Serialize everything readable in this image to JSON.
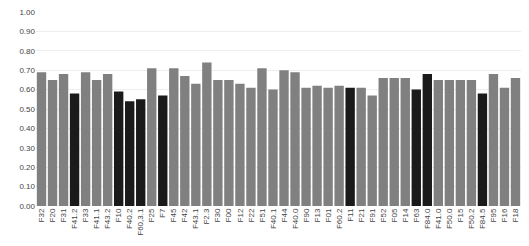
{
  "chart_data": {
    "type": "bar",
    "categories": [
      "F32",
      "F20",
      "F31",
      "F41.2",
      "F33",
      "F41.1",
      "F43.2",
      "F10",
      "F40.2",
      "F60,3.1",
      "F25",
      "F7",
      "F45",
      "F42",
      "F43.1",
      "F2.3",
      "F30",
      "F00",
      "F12",
      "F22",
      "F51",
      "F40.1",
      "F44",
      "F40.0",
      "F90",
      "F13",
      "F01",
      "F60.2",
      "F11",
      "F21",
      "F91",
      "F52",
      "F05",
      "F14",
      "F63",
      "F84.0",
      "F41.0",
      "F50.0",
      "F15",
      "F50.2",
      "F84.5",
      "F95",
      "F16",
      "F18"
    ],
    "values": [
      0.69,
      0.65,
      0.68,
      0.58,
      0.69,
      0.65,
      0.68,
      0.59,
      0.54,
      0.55,
      0.71,
      0.57,
      0.71,
      0.67,
      0.63,
      0.74,
      0.65,
      0.65,
      0.63,
      0.61,
      0.71,
      0.6,
      0.7,
      0.69,
      0.61,
      0.62,
      0.61,
      0.62,
      0.61,
      0.61,
      0.57,
      0.66,
      0.66,
      0.66,
      0.6,
      0.68,
      0.65,
      0.65,
      0.65,
      0.65,
      0.58,
      0.68,
      0.61,
      0.66
    ],
    "colors": [
      "#808080",
      "#808080",
      "#808080",
      "#1a1a1a",
      "#808080",
      "#808080",
      "#808080",
      "#1a1a1a",
      "#1a1a1a",
      "#1a1a1a",
      "#808080",
      "#1a1a1a",
      "#808080",
      "#808080",
      "#808080",
      "#808080",
      "#808080",
      "#808080",
      "#808080",
      "#808080",
      "#808080",
      "#808080",
      "#808080",
      "#808080",
      "#808080",
      "#808080",
      "#808080",
      "#808080",
      "#1a1a1a",
      "#808080",
      "#808080",
      "#808080",
      "#808080",
      "#808080",
      "#1a1a1a",
      "#1a1a1a",
      "#808080",
      "#808080",
      "#808080",
      "#808080",
      "#1a1a1a",
      "#808080",
      "#808080",
      "#808080"
    ],
    "ylim": [
      0.0,
      1.0
    ],
    "yticks": [
      {
        "value": 0.0,
        "label": "0.00"
      },
      {
        "value": 0.1,
        "label": "0.10"
      },
      {
        "value": 0.2,
        "label": "0.20"
      },
      {
        "value": 0.3,
        "label": "0.30"
      },
      {
        "value": 0.4,
        "label": "0.40"
      },
      {
        "value": 0.5,
        "label": "0.50"
      },
      {
        "value": 0.6,
        "label": "0.60"
      },
      {
        "value": 0.7,
        "label": "0.70"
      },
      {
        "value": 0.8,
        "label": "0.80"
      },
      {
        "value": 0.9,
        "label": "0.90"
      },
      {
        "value": 1.0,
        "label": "1.00"
      }
    ],
    "grid": true
  }
}
